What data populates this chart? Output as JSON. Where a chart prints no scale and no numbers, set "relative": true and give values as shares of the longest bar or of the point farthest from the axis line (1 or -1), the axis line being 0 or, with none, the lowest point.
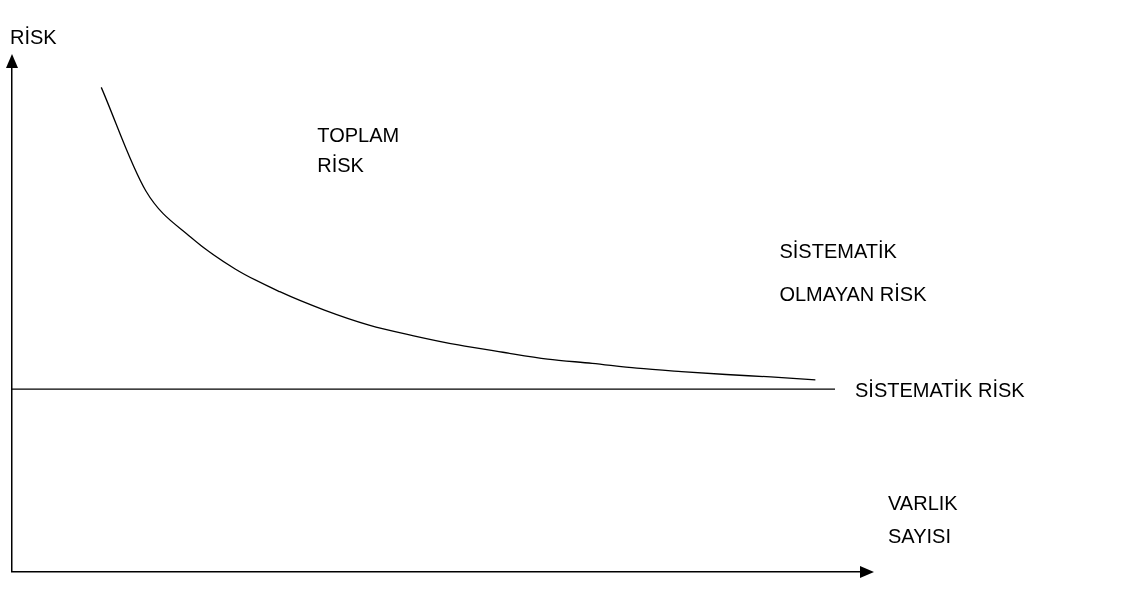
{
  "chart_data": {
    "type": "line",
    "relative": true,
    "ylabel": "RİSK",
    "xlabel": "VARLIK\nSAYISI",
    "categories": [
      null,
      null,
      null,
      null,
      null,
      null,
      null,
      null,
      null,
      null,
      null,
      null,
      null,
      null,
      null,
      null,
      null,
      null,
      null,
      null
    ],
    "series": [
      {
        "color": "#000000",
        "values": [
          null,
          null,
          1,
          0.786,
          0.691,
          0.625,
          0.578,
          0.54,
          0.509,
          0.487,
          0.468,
          0.453,
          0.439,
          0.43,
          0.42,
          0.413,
          0.407,
          0.402,
          0.396,
          null
        ]
      }
    ],
    "ref_lines": [
      {
        "axis": "y",
        "value": 0.377,
        "label": "SİSTEMATİK RİSK",
        "color": "#000000"
      }
    ],
    "annotations": [
      "TOPLAM\nRİSK",
      "SİSTEMATİK\nOLMAYAN RİSK"
    ],
    "marker": "none",
    "grid": false,
    "legend": false
  }
}
